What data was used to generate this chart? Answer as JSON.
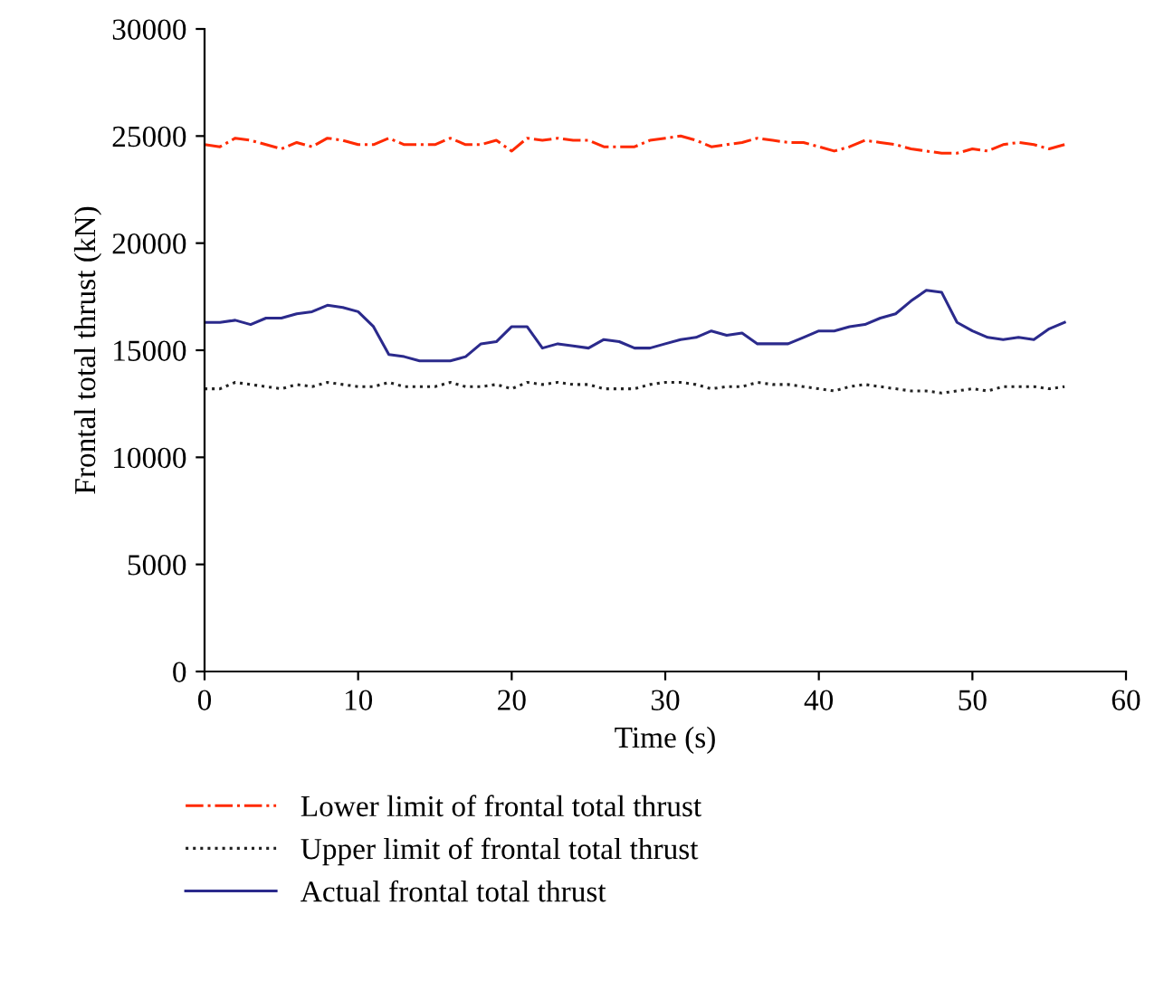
{
  "chart_data": {
    "type": "line",
    "xlabel": "Time (s)",
    "ylabel": "Frontal total thrust (kN)",
    "x": [
      0,
      1,
      2,
      3,
      4,
      5,
      6,
      7,
      8,
      9,
      10,
      11,
      12,
      13,
      14,
      15,
      16,
      17,
      18,
      19,
      20,
      21,
      22,
      23,
      24,
      25,
      26,
      27,
      28,
      29,
      30,
      31,
      32,
      33,
      34,
      35,
      36,
      37,
      38,
      39,
      40,
      41,
      42,
      43,
      44,
      45,
      46,
      47,
      48,
      49,
      50,
      51,
      52,
      53,
      54,
      55,
      56
    ],
    "series": [
      {
        "name": "Lower limit of frontal total thrust",
        "color": "#ff2a00",
        "line_style": "dashdot",
        "values": [
          24600,
          24500,
          24900,
          24800,
          24600,
          24400,
          24700,
          24500,
          24900,
          24800,
          24600,
          24600,
          24900,
          24600,
          24600,
          24600,
          24900,
          24600,
          24600,
          24800,
          24300,
          24900,
          24800,
          24900,
          24800,
          24800,
          24500,
          24500,
          24500,
          24800,
          24900,
          25000,
          24800,
          24500,
          24600,
          24700,
          24900,
          24800,
          24700,
          24700,
          24500,
          24300,
          24500,
          24800,
          24700,
          24600,
          24400,
          24300,
          24200,
          24200,
          24400,
          24300,
          24600,
          24700,
          24600,
          24400,
          24600
        ]
      },
      {
        "name": "Upper limit of frontal total thrust",
        "color": "#222222",
        "line_style": "dotted",
        "values": [
          13200,
          13200,
          13500,
          13400,
          13300,
          13200,
          13400,
          13300,
          13500,
          13400,
          13300,
          13300,
          13500,
          13300,
          13300,
          13300,
          13500,
          13300,
          13300,
          13400,
          13200,
          13500,
          13400,
          13500,
          13400,
          13400,
          13200,
          13200,
          13200,
          13400,
          13500,
          13500,
          13400,
          13200,
          13300,
          13300,
          13500,
          13400,
          13400,
          13300,
          13200,
          13100,
          13300,
          13400,
          13300,
          13200,
          13100,
          13100,
          13000,
          13100,
          13200,
          13100,
          13300,
          13300,
          13300,
          13200,
          13300
        ]
      },
      {
        "name": "Actual frontal total thrust",
        "color": "#2b2a8c",
        "line_style": "solid",
        "values": [
          16300,
          16300,
          16400,
          16200,
          16500,
          16500,
          16700,
          16800,
          17100,
          17000,
          16800,
          16100,
          14800,
          14700,
          14500,
          14500,
          14500,
          14700,
          15300,
          15400,
          16100,
          16100,
          15100,
          15300,
          15200,
          15100,
          15500,
          15400,
          15100,
          15100,
          15300,
          15500,
          15600,
          15900,
          15700,
          15800,
          15300,
          15300,
          15300,
          15600,
          15900,
          15900,
          16100,
          16200,
          16500,
          16700,
          17300,
          17800,
          17700,
          16300,
          15900,
          15600,
          15500,
          15600,
          15500,
          16000,
          16300
        ]
      }
    ],
    "xlim": [
      0,
      60
    ],
    "xticks": [
      0,
      10,
      20,
      30,
      40,
      50,
      60
    ],
    "ylim": [
      0,
      30000
    ],
    "yticks": [
      0,
      5000,
      10000,
      15000,
      20000,
      25000,
      30000
    ],
    "legend": "bottom",
    "grid": false
  }
}
